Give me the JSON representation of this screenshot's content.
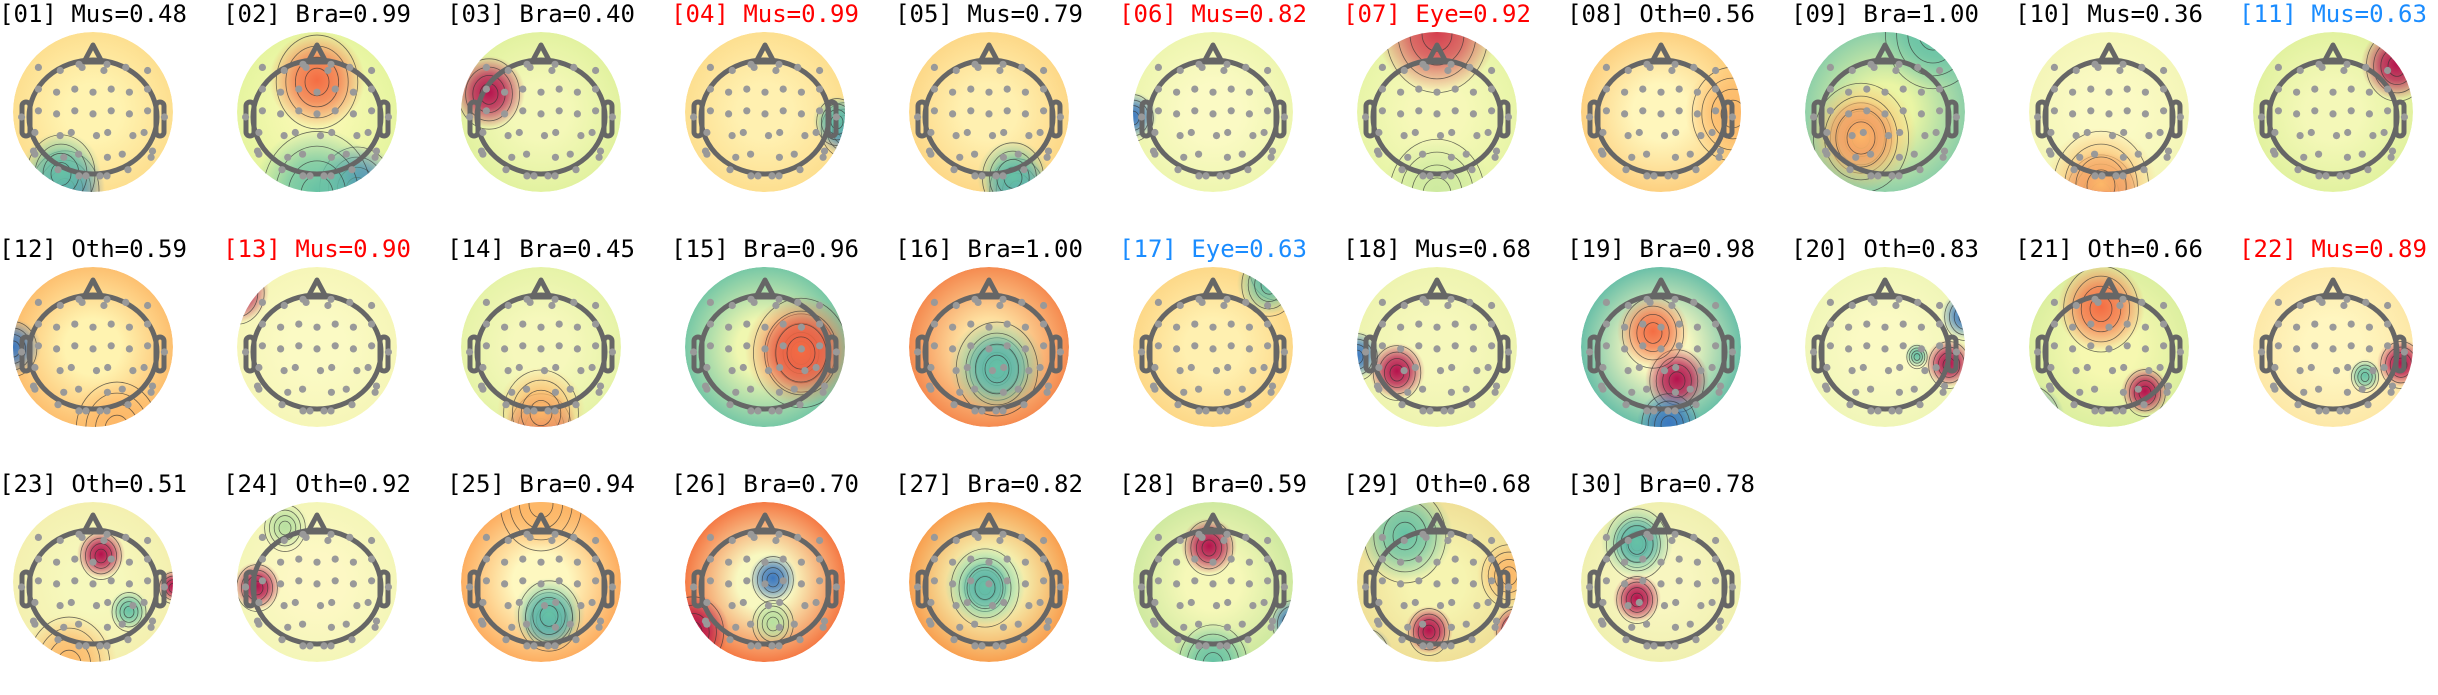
{
  "label_colors": {
    "default": "#000000",
    "red": "#ff0000",
    "blue": "#1a8cff"
  },
  "colormap": "spectral",
  "components": [
    {
      "title": "[01] Mus=0.48",
      "color": "#000000"
    },
    {
      "title": "[02] Bra=0.99",
      "color": "#000000"
    },
    {
      "title": "[03] Bra=0.40",
      "color": "#000000"
    },
    {
      "title": "[04] Mus=0.99",
      "color": "#ff0000"
    },
    {
      "title": "[05] Mus=0.79",
      "color": "#000000"
    },
    {
      "title": "[06] Mus=0.82",
      "color": "#ff0000"
    },
    {
      "title": "[07] Eye=0.92",
      "color": "#ff0000"
    },
    {
      "title": "[08] Oth=0.56",
      "color": "#000000"
    },
    {
      "title": "[09] Bra=1.00",
      "color": "#000000"
    },
    {
      "title": "[10] Mus=0.36",
      "color": "#000000"
    },
    {
      "title": "[11] Mus=0.63",
      "color": "#1a8cff"
    },
    {
      "title": "[12] Oth=0.59",
      "color": "#000000"
    },
    {
      "title": "[13] Mus=0.90",
      "color": "#ff0000"
    },
    {
      "title": "[14] Bra=0.45",
      "color": "#000000"
    },
    {
      "title": "[15] Bra=0.96",
      "color": "#000000"
    },
    {
      "title": "[16] Bra=1.00",
      "color": "#000000"
    },
    {
      "title": "[17] Eye=0.63",
      "color": "#1a8cff"
    },
    {
      "title": "[18] Mus=0.68",
      "color": "#000000"
    },
    {
      "title": "[19] Bra=0.98",
      "color": "#000000"
    },
    {
      "title": "[20] Oth=0.83",
      "color": "#000000"
    },
    {
      "title": "[21] Oth=0.66",
      "color": "#000000"
    },
    {
      "title": "[22] Mus=0.89",
      "color": "#ff0000"
    },
    {
      "title": "[23] Oth=0.51",
      "color": "#000000"
    },
    {
      "title": "[24] Oth=0.92",
      "color": "#000000"
    },
    {
      "title": "[25] Bra=0.94",
      "color": "#000000"
    },
    {
      "title": "[26] Bra=0.70",
      "color": "#000000"
    },
    {
      "title": "[27] Bra=0.82",
      "color": "#000000"
    },
    {
      "title": "[28] Bra=0.59",
      "color": "#000000"
    },
    {
      "title": "[29] Oth=0.68",
      "color": "#000000"
    },
    {
      "title": "[30] Bra=0.78",
      "color": "#000000"
    }
  ]
}
